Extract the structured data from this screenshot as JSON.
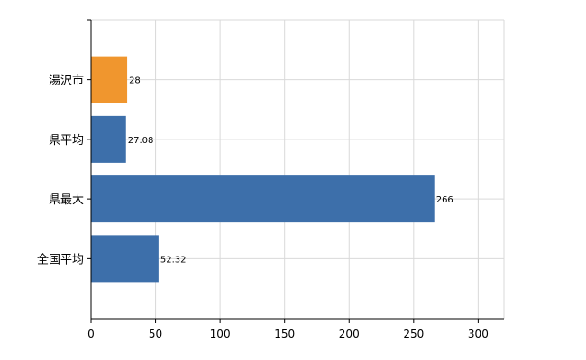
{
  "chart_data": {
    "type": "bar",
    "orientation": "horizontal",
    "categories": [
      "湯沢市",
      "県平均",
      "県最大",
      "全国平均"
    ],
    "values": [
      28,
      27.08,
      266,
      52.32
    ],
    "value_labels": [
      "28",
      "27.08",
      "266",
      "52.32"
    ],
    "bar_colors": [
      "#f0962e",
      "#3d6faa",
      "#3d6faa",
      "#3d6faa"
    ],
    "title": "",
    "xlabel": "",
    "ylabel": "",
    "xlim": [
      0,
      320
    ],
    "x_ticks": [
      0,
      50,
      100,
      150,
      200,
      250,
      300
    ],
    "x_tick_labels": [
      "0",
      "50",
      "100",
      "150",
      "200",
      "250",
      "300"
    ],
    "grid": true,
    "legend": "none"
  }
}
